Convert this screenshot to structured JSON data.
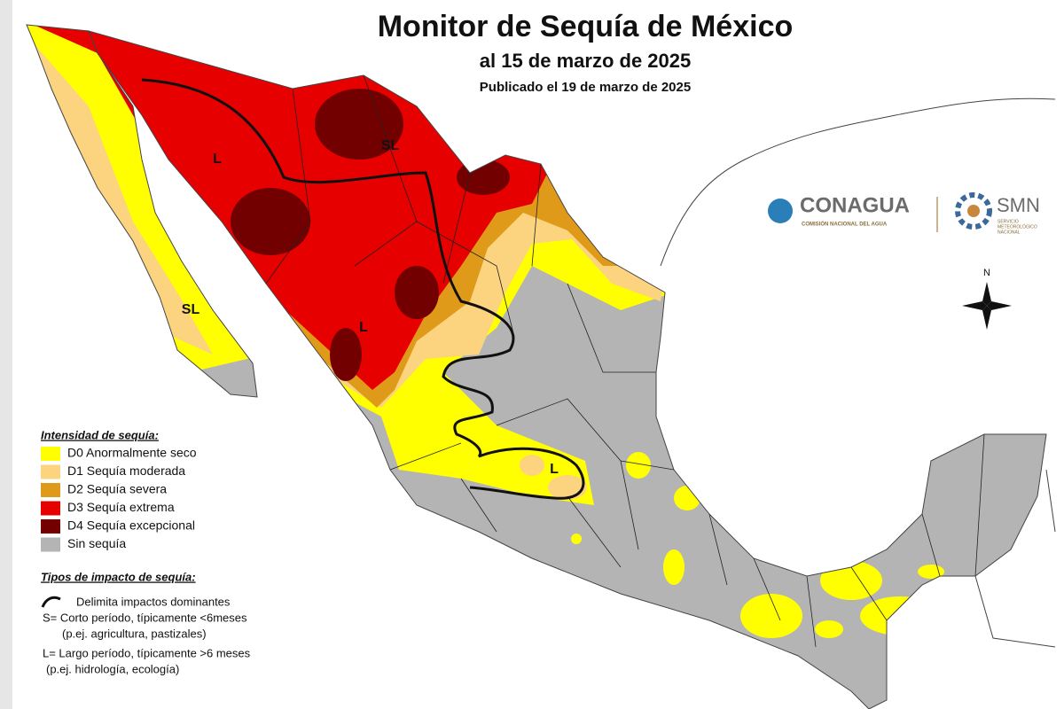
{
  "header": {
    "title": "Monitor de Sequía de México",
    "subtitle": "al 15 de marzo de 2025",
    "published": "Publicado el 19 de marzo de 2025"
  },
  "legend": {
    "title": "Intensidad de sequía:",
    "items": [
      {
        "label": "D0 Anormalmente seco",
        "color": "#ffff00"
      },
      {
        "label": "D1 Sequía moderada",
        "color": "#fcd37f"
      },
      {
        "label": "D2 Sequía severa",
        "color": "#e09a1a"
      },
      {
        "label": "D3 Sequía extrema",
        "color": "#e60000"
      },
      {
        "label": "D4 Sequía excepcional",
        "color": "#730000"
      },
      {
        "label": "Sin sequía",
        "color": "#b4b4b4"
      }
    ]
  },
  "impact_legend": {
    "title": "Tipos de impacto de sequía:",
    "line_label": "Delimita impactos dominantes",
    "lines": [
      "S= Corto período, típicamente <6meses",
      "(p.ej. agricultura, pastizales)",
      "L= Largo período, típicamente >6 meses",
      "(p.ej. hidrología, ecología)"
    ]
  },
  "map_labels": [
    "L",
    "SL",
    "SL",
    "L",
    "L"
  ],
  "logos": {
    "conagua": "CONAGUA",
    "conagua_sub": "COMISIÓN NACIONAL DEL AGUA",
    "smn": "SMN",
    "smn_sub": [
      "SERVICIO",
      "METEOROLÓGICO",
      "NACIONAL"
    ]
  },
  "compass": "N"
}
